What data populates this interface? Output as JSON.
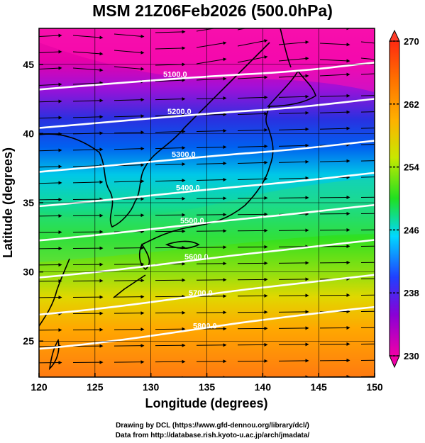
{
  "title": "MSM 21Z06Feb2026 (500.0hPa)",
  "axes": {
    "xlabel": "Longitude (degrees)",
    "ylabel": "Latitude  (degrees)",
    "x_ticks": [
      "120",
      "125",
      "130",
      "135",
      "140",
      "145",
      "150"
    ],
    "x_tick_values": [
      120,
      125,
      130,
      135,
      140,
      145,
      150
    ],
    "y_ticks": [
      "25",
      "30",
      "35",
      "40",
      "45"
    ],
    "y_tick_values": [
      25,
      30,
      35,
      40,
      45
    ],
    "xlim": [
      120,
      150
    ],
    "ylim": [
      22.4,
      47.6
    ]
  },
  "colorbar": {
    "labels": [
      "270",
      "262",
      "254",
      "246",
      "238",
      "230"
    ],
    "label_values": [
      270,
      262,
      254,
      246,
      238,
      230
    ],
    "range": [
      230,
      270
    ],
    "colors": [
      "#e8009e",
      "#8a00d6",
      "#1528ff",
      "#00c8ff",
      "#1ee600",
      "#d2e600",
      "#ffa800",
      "#ff5a1e"
    ]
  },
  "contours": {
    "labels": [
      "5100.0",
      "5200.0",
      "5300.0",
      "5400.0",
      "5500.0",
      "5600.0",
      "5700.0",
      "5800.0"
    ],
    "color": "#ffffff"
  },
  "chart_data": {
    "type": "heatmap",
    "title": "MSM 21Z06Feb2026 (500.0hPa)",
    "xlabel": "Longitude (degrees)",
    "ylabel": "Latitude  (degrees)",
    "xlim": [
      120,
      150
    ],
    "ylim": [
      22.4,
      47.6
    ],
    "colorbar_range": [
      230,
      270
    ],
    "colorbar_ticks": [
      230,
      238,
      246,
      254,
      262,
      270
    ],
    "contour_levels": [
      5100,
      5200,
      5300,
      5400,
      5500,
      5600,
      5700,
      5800
    ],
    "contour_latitudes_at_130E": [
      44.0,
      41.3,
      38.2,
      35.8,
      33.4,
      30.8,
      28.2,
      25.8
    ],
    "grid": true
  },
  "credits": {
    "line1": "Drawing by DCL (https://www.gfd-dennou.org/library/dcl/)",
    "line2": "Data from http://database.rish.kyoto-u.ac.jp/arch/jmadata/"
  }
}
